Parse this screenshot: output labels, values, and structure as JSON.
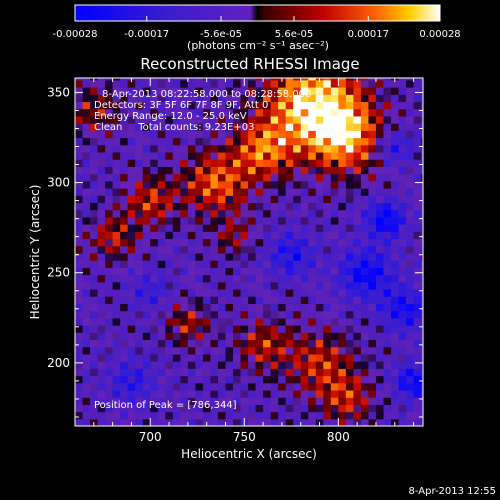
{
  "chart_data": {
    "type": "heatmap",
    "title": "Reconstructed RHESSI Image",
    "xlabel": "Heliocentric X (arcsec)",
    "ylabel": "Heliocentric Y (arcsec)",
    "xlim": [
      660,
      845
    ],
    "ylim": [
      165,
      358
    ],
    "x_ticks": [
      700,
      750,
      800
    ],
    "y_ticks": [
      200,
      250,
      300,
      350
    ],
    "colorbar": {
      "range": [
        -0.00028,
        0.00028
      ],
      "tick_labels": [
        "-0.00028",
        "-0.00017",
        "-5.6e-05",
        "5.6e-05",
        "0.00017",
        "0.00028"
      ],
      "tick_values": [
        -0.00028,
        -0.00017,
        -5.6e-05,
        5.6e-05,
        0.00017,
        0.00028
      ],
      "unit_label": "(photons cm⁻² s⁻¹ asec⁻²)"
    },
    "annotations": [
      "8-Apr-2013 08:22:58.000 to 08:28:58.000",
      "Detectors: 3F 5F 6F 7F 8F 9F, Att 0",
      "Energy Range: 12.0 - 25.0 keV",
      "Clean     Total counts: 9.23E+03"
    ],
    "peak_label": "Position of Peak = [786,344]",
    "peak_position": [
      786,
      344
    ],
    "colors": {
      "low": "#0000ff",
      "zero": "#6020c0",
      "high": "#ffffff",
      "accent": "#ff6000"
    }
  },
  "footer_timestamp": "8-Apr-2013 12:55"
}
